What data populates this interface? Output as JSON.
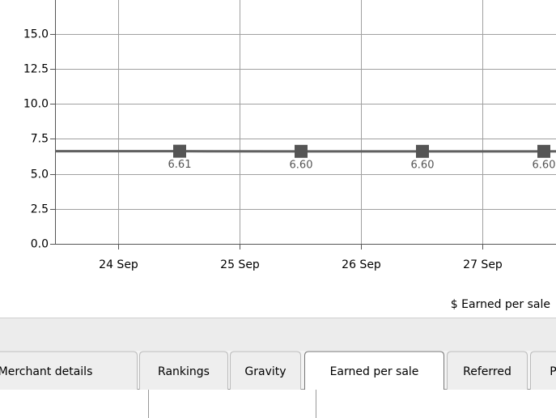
{
  "chart_data": {
    "type": "line",
    "x_label": "$ Earned per sale",
    "xticks": [
      "24 Sep",
      "25 Sep",
      "26 Sep",
      "27 Sep"
    ],
    "series": [
      {
        "color": "#606060",
        "values": [
          6.61,
          6.6,
          6.6,
          6.6
        ],
        "value_labels": [
          "6.61",
          "6.60",
          "6.60",
          "6.60"
        ]
      }
    ],
    "ylim": [
      0,
      17.4
    ],
    "yticks": [
      {
        "value": 0,
        "label": "0.0"
      },
      {
        "value": 2.5,
        "label": "2.5"
      },
      {
        "value": 5,
        "label": "5.0"
      },
      {
        "value": 7.5,
        "label": "7.5"
      },
      {
        "value": 10,
        "label": "10.0"
      },
      {
        "value": 12.5,
        "label": "12.5"
      },
      {
        "value": 15,
        "label": "15.0"
      }
    ],
    "grid": true
  },
  "tabs": [
    "Merchant details",
    "Rankings",
    "Gravity",
    "Earned per sale",
    "Referred",
    "Pe"
  ],
  "selected_tab": 3
}
